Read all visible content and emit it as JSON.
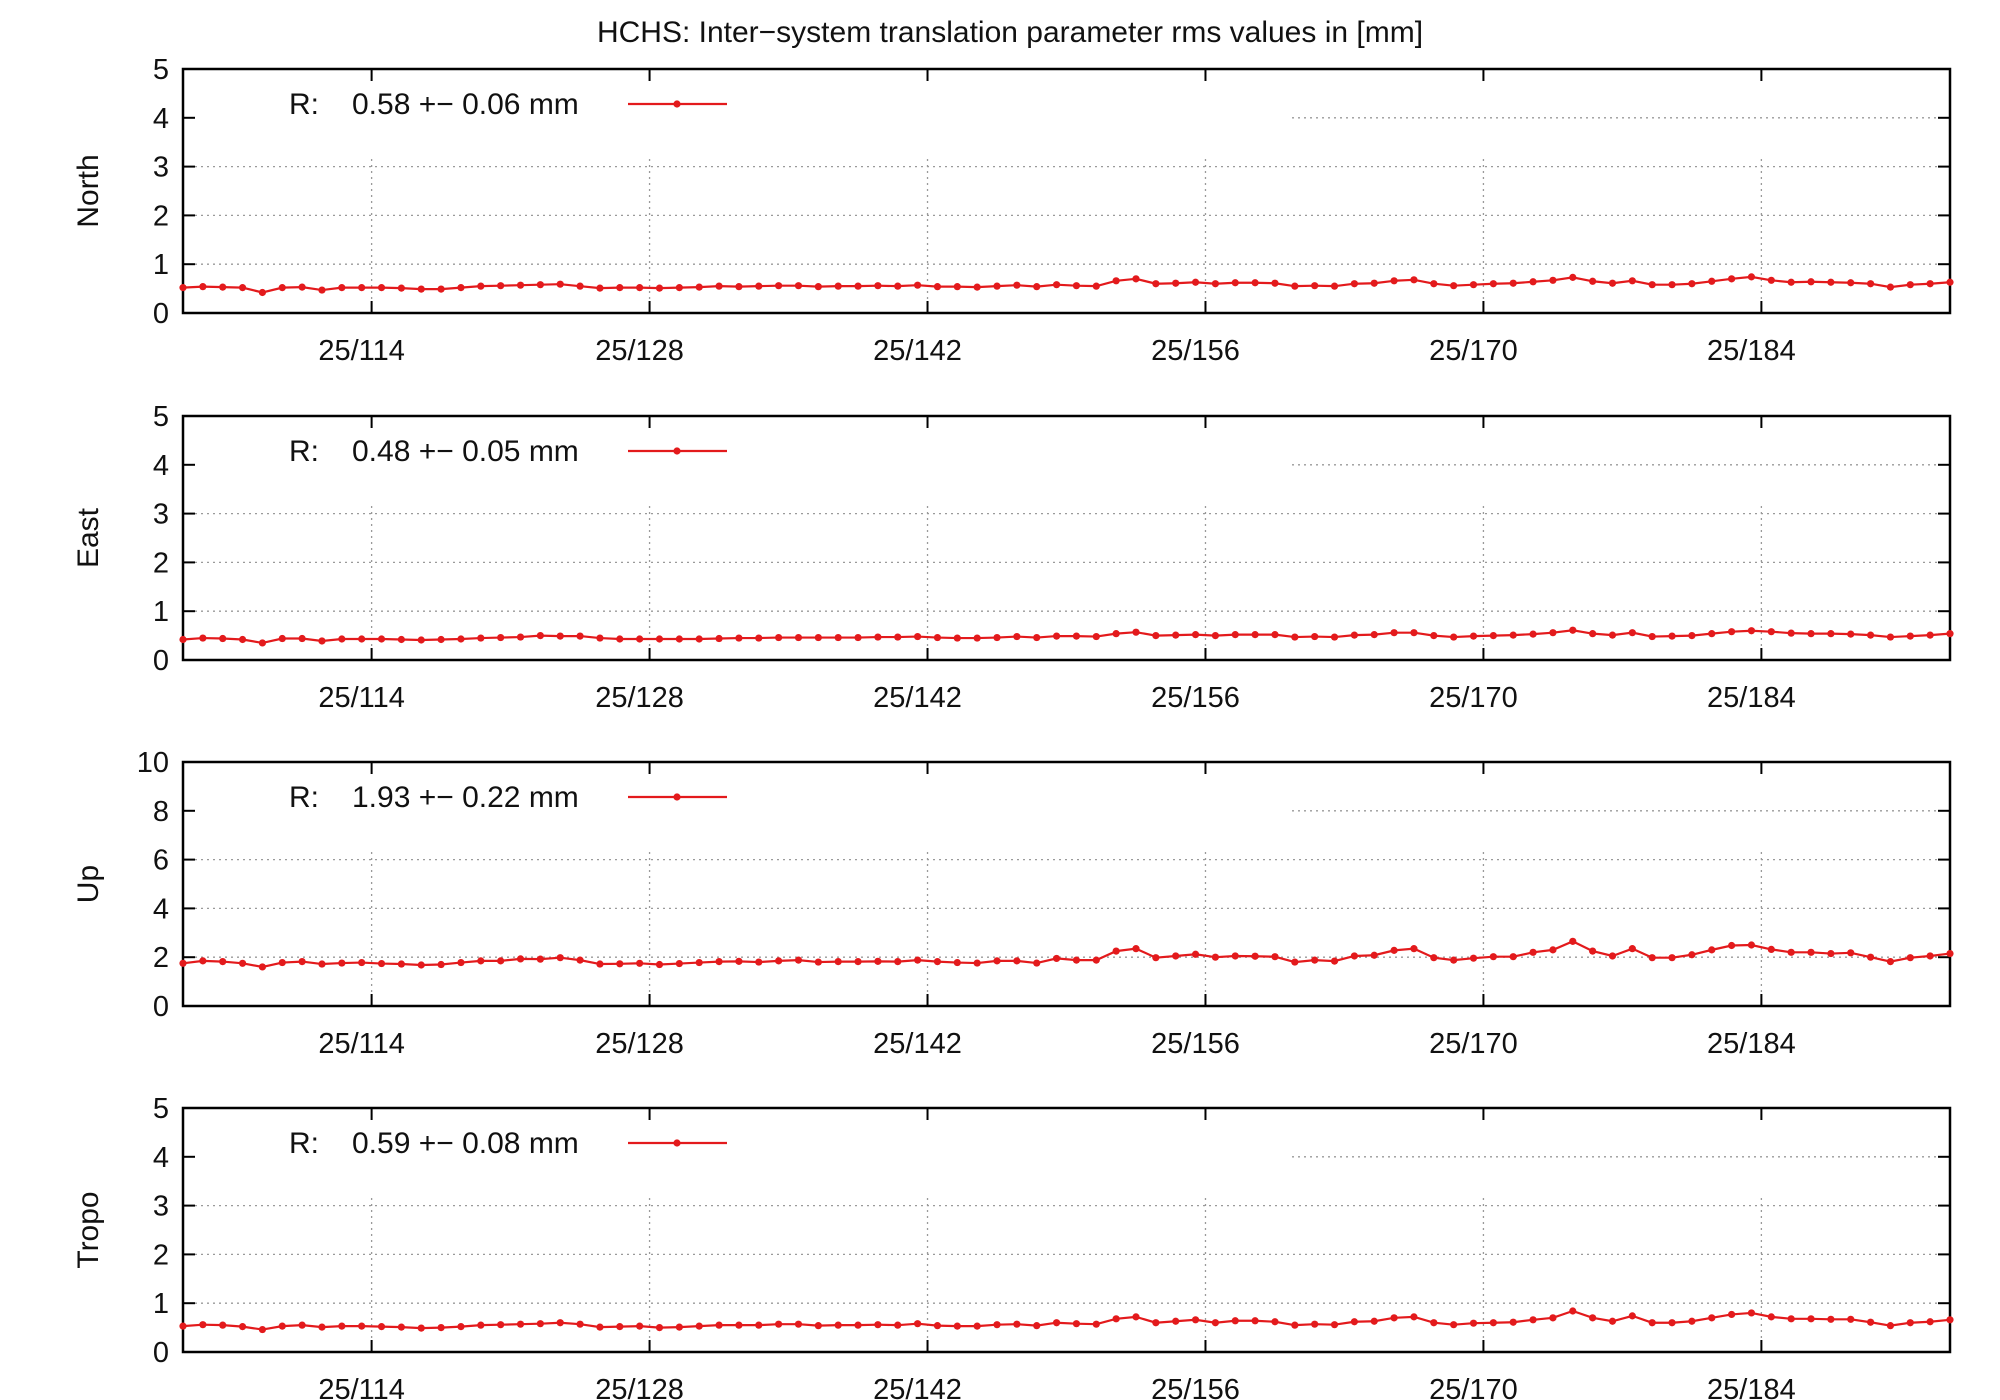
{
  "figure": {
    "title": "HCHS: Inter−system translation parameter rms values in [mm]"
  },
  "colors": {
    "series": "#e31a1c",
    "axis": "#000000",
    "grid": "#9a9a9a"
  },
  "chart_data": [
    {
      "type": "line",
      "ylabel": "North",
      "ylim": [
        0,
        5
      ],
      "yticks": [
        0,
        1,
        2,
        3,
        4,
        5
      ],
      "xlim": [
        104.5,
        193.5
      ],
      "xticks": [
        114,
        128,
        142,
        156,
        170,
        184
      ],
      "xtick_labels": [
        "25/114",
        "25/128",
        "25/142",
        "25/156",
        "25/170",
        "25/184"
      ],
      "grid": true,
      "legend": {
        "position": "top-left",
        "label_prefix": "R:",
        "label_value": "0.58 +− 0.06 mm"
      },
      "series": [
        {
          "name": "R",
          "x": [
            104.5,
            105.5,
            106.5,
            107.5,
            108.5,
            109.5,
            110.5,
            111.5,
            112.5,
            113.5,
            114.5,
            115.5,
            116.5,
            117.5,
            118.5,
            119.5,
            120.5,
            121.5,
            122.5,
            123.5,
            124.5,
            125.5,
            126.5,
            127.5,
            128.5,
            129.5,
            130.5,
            131.5,
            132.5,
            133.5,
            134.5,
            135.5,
            136.5,
            137.5,
            138.5,
            139.5,
            140.5,
            141.5,
            142.5,
            143.5,
            144.5,
            145.5,
            146.5,
            147.5,
            148.5,
            149.5,
            150.5,
            151.5,
            152.5,
            153.5,
            154.5,
            155.5,
            156.5,
            157.5,
            158.5,
            159.5,
            160.5,
            161.5,
            162.5,
            163.5,
            164.5,
            165.5,
            166.5,
            167.5,
            168.5,
            169.5,
            170.5,
            171.5,
            172.5,
            173.5,
            174.5,
            175.5,
            176.5,
            177.5,
            178.5,
            179.5,
            180.5,
            181.5,
            182.5,
            183.5,
            184.5,
            185.5,
            186.5,
            187.5,
            188.5,
            189.5,
            190.5,
            191.5,
            192.5,
            193.5
          ],
          "values": [
            0.52,
            0.54,
            0.53,
            0.52,
            0.42,
            0.52,
            0.53,
            0.47,
            0.52,
            0.52,
            0.52,
            0.51,
            0.49,
            0.49,
            0.52,
            0.55,
            0.56,
            0.57,
            0.58,
            0.59,
            0.55,
            0.51,
            0.52,
            0.52,
            0.51,
            0.52,
            0.53,
            0.55,
            0.54,
            0.55,
            0.56,
            0.56,
            0.54,
            0.55,
            0.55,
            0.56,
            0.55,
            0.57,
            0.54,
            0.54,
            0.53,
            0.55,
            0.57,
            0.54,
            0.58,
            0.56,
            0.55,
            0.66,
            0.7,
            0.6,
            0.61,
            0.63,
            0.6,
            0.62,
            0.62,
            0.61,
            0.55,
            0.56,
            0.55,
            0.6,
            0.61,
            0.66,
            0.68,
            0.6,
            0.56,
            0.58,
            0.6,
            0.61,
            0.64,
            0.67,
            0.73,
            0.65,
            0.61,
            0.66,
            0.58,
            0.58,
            0.6,
            0.65,
            0.7,
            0.74,
            0.67,
            0.63,
            0.64,
            0.63,
            0.62,
            0.6,
            0.53,
            0.58,
            0.6,
            0.63
          ]
        }
      ]
    },
    {
      "type": "line",
      "ylabel": "East",
      "ylim": [
        0,
        5
      ],
      "yticks": [
        0,
        1,
        2,
        3,
        4,
        5
      ],
      "xlim": [
        104.5,
        193.5
      ],
      "xticks": [
        114,
        128,
        142,
        156,
        170,
        184
      ],
      "xtick_labels": [
        "25/114",
        "25/128",
        "25/142",
        "25/156",
        "25/170",
        "25/184"
      ],
      "grid": true,
      "legend": {
        "position": "top-left",
        "label_prefix": "R:",
        "label_value": "0.48 +− 0.05 mm"
      },
      "series": [
        {
          "name": "R",
          "x": [
            104.5,
            105.5,
            106.5,
            107.5,
            108.5,
            109.5,
            110.5,
            111.5,
            112.5,
            113.5,
            114.5,
            115.5,
            116.5,
            117.5,
            118.5,
            119.5,
            120.5,
            121.5,
            122.5,
            123.5,
            124.5,
            125.5,
            126.5,
            127.5,
            128.5,
            129.5,
            130.5,
            131.5,
            132.5,
            133.5,
            134.5,
            135.5,
            136.5,
            137.5,
            138.5,
            139.5,
            140.5,
            141.5,
            142.5,
            143.5,
            144.5,
            145.5,
            146.5,
            147.5,
            148.5,
            149.5,
            150.5,
            151.5,
            152.5,
            153.5,
            154.5,
            155.5,
            156.5,
            157.5,
            158.5,
            159.5,
            160.5,
            161.5,
            162.5,
            163.5,
            164.5,
            165.5,
            166.5,
            167.5,
            168.5,
            169.5,
            170.5,
            171.5,
            172.5,
            173.5,
            174.5,
            175.5,
            176.5,
            177.5,
            178.5,
            179.5,
            180.5,
            181.5,
            182.5,
            183.5,
            184.5,
            185.5,
            186.5,
            187.5,
            188.5,
            189.5,
            190.5,
            191.5,
            192.5,
            193.5
          ],
          "values": [
            0.42,
            0.45,
            0.44,
            0.42,
            0.35,
            0.44,
            0.44,
            0.39,
            0.43,
            0.43,
            0.43,
            0.42,
            0.41,
            0.42,
            0.43,
            0.45,
            0.46,
            0.47,
            0.5,
            0.49,
            0.49,
            0.45,
            0.43,
            0.43,
            0.43,
            0.43,
            0.43,
            0.44,
            0.45,
            0.45,
            0.46,
            0.46,
            0.46,
            0.46,
            0.46,
            0.47,
            0.47,
            0.48,
            0.46,
            0.45,
            0.45,
            0.46,
            0.48,
            0.46,
            0.49,
            0.49,
            0.48,
            0.54,
            0.57,
            0.5,
            0.51,
            0.52,
            0.5,
            0.52,
            0.52,
            0.52,
            0.47,
            0.48,
            0.47,
            0.51,
            0.52,
            0.56,
            0.56,
            0.5,
            0.47,
            0.49,
            0.5,
            0.51,
            0.53,
            0.56,
            0.61,
            0.54,
            0.51,
            0.56,
            0.48,
            0.49,
            0.5,
            0.54,
            0.58,
            0.6,
            0.58,
            0.55,
            0.54,
            0.54,
            0.53,
            0.51,
            0.47,
            0.49,
            0.51,
            0.54
          ]
        }
      ]
    },
    {
      "type": "line",
      "ylabel": "Up",
      "ylim": [
        0,
        10
      ],
      "yticks": [
        0,
        2,
        4,
        6,
        8,
        10
      ],
      "xlim": [
        104.5,
        193.5
      ],
      "xticks": [
        114,
        128,
        142,
        156,
        170,
        184
      ],
      "xtick_labels": [
        "25/114",
        "25/128",
        "25/142",
        "25/156",
        "25/170",
        "25/184"
      ],
      "grid": true,
      "legend": {
        "position": "top-left",
        "label_prefix": "R:",
        "label_value": "1.93 +− 0.22 mm"
      },
      "series": [
        {
          "name": "R",
          "x": [
            104.5,
            105.5,
            106.5,
            107.5,
            108.5,
            109.5,
            110.5,
            111.5,
            112.5,
            113.5,
            114.5,
            115.5,
            116.5,
            117.5,
            118.5,
            119.5,
            120.5,
            121.5,
            122.5,
            123.5,
            124.5,
            125.5,
            126.5,
            127.5,
            128.5,
            129.5,
            130.5,
            131.5,
            132.5,
            133.5,
            134.5,
            135.5,
            136.5,
            137.5,
            138.5,
            139.5,
            140.5,
            141.5,
            142.5,
            143.5,
            144.5,
            145.5,
            146.5,
            147.5,
            148.5,
            149.5,
            150.5,
            151.5,
            152.5,
            153.5,
            154.5,
            155.5,
            156.5,
            157.5,
            158.5,
            159.5,
            160.5,
            161.5,
            162.5,
            163.5,
            164.5,
            165.5,
            166.5,
            167.5,
            168.5,
            169.5,
            170.5,
            171.5,
            172.5,
            173.5,
            174.5,
            175.5,
            176.5,
            177.5,
            178.5,
            179.5,
            180.5,
            181.5,
            182.5,
            183.5,
            184.5,
            185.5,
            186.5,
            187.5,
            188.5,
            189.5,
            190.5,
            191.5,
            192.5,
            193.5
          ],
          "values": [
            1.75,
            1.85,
            1.82,
            1.75,
            1.6,
            1.78,
            1.82,
            1.72,
            1.76,
            1.78,
            1.74,
            1.72,
            1.68,
            1.7,
            1.78,
            1.85,
            1.85,
            1.93,
            1.92,
            1.98,
            1.88,
            1.72,
            1.73,
            1.75,
            1.7,
            1.74,
            1.78,
            1.82,
            1.83,
            1.8,
            1.85,
            1.88,
            1.8,
            1.82,
            1.82,
            1.83,
            1.82,
            1.88,
            1.82,
            1.78,
            1.76,
            1.85,
            1.85,
            1.76,
            1.95,
            1.88,
            1.88,
            2.25,
            2.35,
            1.98,
            2.05,
            2.12,
            2.0,
            2.05,
            2.04,
            2.02,
            1.8,
            1.88,
            1.84,
            2.05,
            2.08,
            2.28,
            2.35,
            1.98,
            1.88,
            1.96,
            2.02,
            2.02,
            2.2,
            2.3,
            2.65,
            2.25,
            2.05,
            2.35,
            1.98,
            1.98,
            2.1,
            2.3,
            2.48,
            2.5,
            2.32,
            2.2,
            2.2,
            2.15,
            2.18,
            2.0,
            1.82,
            1.98,
            2.05,
            2.15
          ]
        }
      ]
    },
    {
      "type": "line",
      "ylabel": "Tropo",
      "ylim": [
        0,
        5
      ],
      "yticks": [
        0,
        1,
        2,
        3,
        4,
        5
      ],
      "xlim": [
        104.5,
        193.5
      ],
      "xticks": [
        114,
        128,
        142,
        156,
        170,
        184
      ],
      "xtick_labels": [
        "25/114",
        "25/128",
        "25/142",
        "25/156",
        "25/170",
        "25/184"
      ],
      "grid": true,
      "legend": {
        "position": "top-left",
        "label_prefix": "R:",
        "label_value": "0.59 +− 0.08 mm"
      },
      "series": [
        {
          "name": "R",
          "x": [
            104.5,
            105.5,
            106.5,
            107.5,
            108.5,
            109.5,
            110.5,
            111.5,
            112.5,
            113.5,
            114.5,
            115.5,
            116.5,
            117.5,
            118.5,
            119.5,
            120.5,
            121.5,
            122.5,
            123.5,
            124.5,
            125.5,
            126.5,
            127.5,
            128.5,
            129.5,
            130.5,
            131.5,
            132.5,
            133.5,
            134.5,
            135.5,
            136.5,
            137.5,
            138.5,
            139.5,
            140.5,
            141.5,
            142.5,
            143.5,
            144.5,
            145.5,
            146.5,
            147.5,
            148.5,
            149.5,
            150.5,
            151.5,
            152.5,
            153.5,
            154.5,
            155.5,
            156.5,
            157.5,
            158.5,
            159.5,
            160.5,
            161.5,
            162.5,
            163.5,
            164.5,
            165.5,
            166.5,
            167.5,
            168.5,
            169.5,
            170.5,
            171.5,
            172.5,
            173.5,
            174.5,
            175.5,
            176.5,
            177.5,
            178.5,
            179.5,
            180.5,
            181.5,
            182.5,
            183.5,
            184.5,
            185.5,
            186.5,
            187.5,
            188.5,
            189.5,
            190.5,
            191.5,
            192.5,
            193.5
          ],
          "values": [
            0.53,
            0.56,
            0.55,
            0.52,
            0.46,
            0.53,
            0.55,
            0.51,
            0.53,
            0.53,
            0.52,
            0.51,
            0.49,
            0.5,
            0.52,
            0.55,
            0.56,
            0.57,
            0.58,
            0.6,
            0.57,
            0.51,
            0.52,
            0.53,
            0.5,
            0.51,
            0.53,
            0.55,
            0.55,
            0.55,
            0.57,
            0.57,
            0.54,
            0.55,
            0.55,
            0.56,
            0.55,
            0.58,
            0.54,
            0.53,
            0.53,
            0.56,
            0.57,
            0.54,
            0.6,
            0.58,
            0.57,
            0.68,
            0.72,
            0.6,
            0.63,
            0.66,
            0.6,
            0.64,
            0.64,
            0.62,
            0.55,
            0.57,
            0.56,
            0.62,
            0.63,
            0.7,
            0.72,
            0.6,
            0.56,
            0.59,
            0.6,
            0.61,
            0.66,
            0.7,
            0.84,
            0.7,
            0.63,
            0.74,
            0.6,
            0.6,
            0.63,
            0.7,
            0.77,
            0.8,
            0.72,
            0.68,
            0.68,
            0.67,
            0.67,
            0.61,
            0.54,
            0.6,
            0.62,
            0.66
          ]
        }
      ]
    }
  ]
}
